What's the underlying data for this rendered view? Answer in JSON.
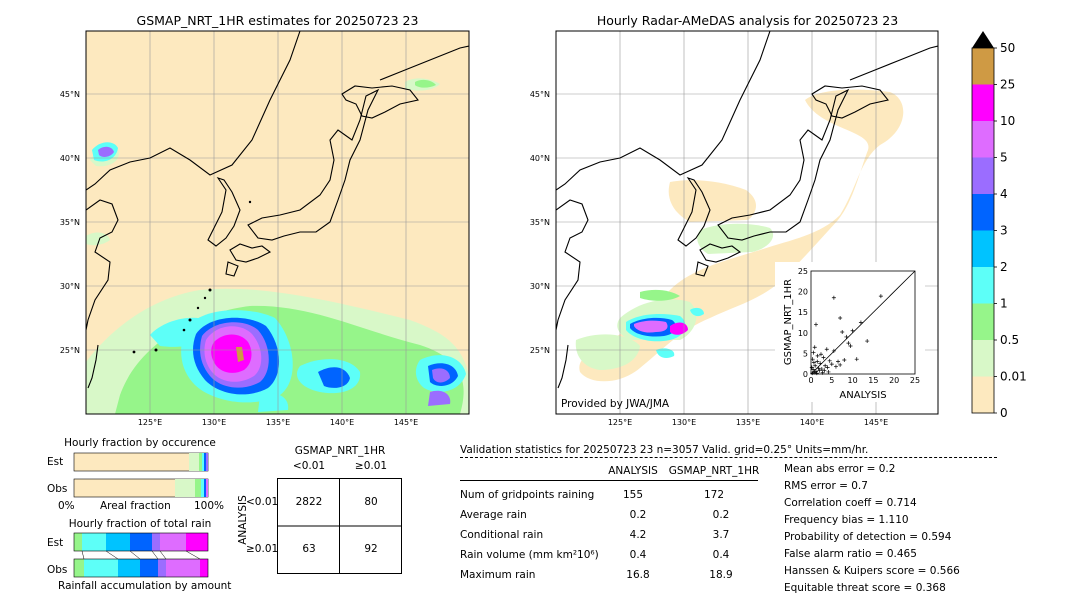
{
  "colors": {
    "land_bg": "#fde9bf",
    "levels": [
      "#fde9bf",
      "#d8f8c8",
      "#96f58a",
      "#5dfff8",
      "#00c3ff",
      "#0064ff",
      "#9b6dff",
      "#de6cff",
      "#ff00ff",
      "#cf9a44"
    ]
  },
  "left_map": {
    "title": "GSMAP_NRT_1HR estimates for 20250723 23",
    "lat_labels": [
      "45°N",
      "40°N",
      "35°N",
      "30°N",
      "25°N"
    ],
    "lon_labels": [
      "125°E",
      "130°E",
      "135°E",
      "140°E",
      "145°E"
    ]
  },
  "right_map": {
    "title": "Hourly Radar-AMeDAS analysis for 20250723 23",
    "lat_labels": [
      "45°N",
      "40°N",
      "35°N",
      "30°N",
      "25°N"
    ],
    "lon_labels": [
      "125°E",
      "130°E",
      "135°E",
      "140°E",
      "145°E"
    ],
    "credit": "Provided by JWA/JMA"
  },
  "colorbar": {
    "labels": [
      "50",
      "25",
      "10",
      "5",
      "4",
      "3",
      "2",
      "1",
      "0.5",
      "0.01",
      "0"
    ]
  },
  "fraction_occurrence": {
    "title": "Hourly fraction by occurence",
    "row_labels": [
      "Est",
      "Obs"
    ],
    "axis_left": "0%",
    "axis_mid": "Areal fraction",
    "axis_right": "100%"
  },
  "fraction_total": {
    "title": "Hourly fraction of total rain",
    "row_labels": [
      "Est",
      "Obs"
    ],
    "axis_mid": "Rainfall accumulation by amount"
  },
  "contingency": {
    "title": "GSMAP_NRT_1HR",
    "col_labels": [
      "<0.01",
      "≥0.01"
    ],
    "row_axis": "ANALYSIS",
    "row_labels": [
      "<0.01",
      "≥0.01"
    ],
    "cells": [
      "2822",
      "80",
      "63",
      "92"
    ]
  },
  "validation": {
    "header": "Validation statistics for 20250723 23  n=3057 Valid. grid=0.25° Units=mm/hr.",
    "col_analysis": "ANALYSIS",
    "col_gsmap": "GSMAP_NRT_1HR",
    "rows": [
      {
        "label": "Num of gridpoints raining",
        "analysis": "155",
        "gsmap": "172"
      },
      {
        "label": "Average rain",
        "analysis": "0.2",
        "gsmap": "0.2"
      },
      {
        "label": "Conditional rain",
        "analysis": "4.2",
        "gsmap": "3.7"
      },
      {
        "label": "Rain volume (mm km²10⁶)",
        "analysis": "0.4",
        "gsmap": "0.4"
      },
      {
        "label": "Maximum rain",
        "analysis": "16.8",
        "gsmap": "18.9"
      }
    ],
    "scores": [
      "Mean abs error =    0.2",
      "RMS error =    0.7",
      "Correlation coeff =  0.714",
      "Frequency bias =  1.110",
      "Probability of detection =  0.594",
      "False alarm ratio =  0.465",
      "Hanssen & Kuipers score =  0.566",
      "Equitable threat score =  0.368"
    ]
  },
  "chart_data": {
    "type": "scatter",
    "xlabel": "ANALYSIS",
    "ylabel": "GSMAP_NRT_1HR",
    "xlim": [
      0,
      25
    ],
    "ylim": [
      0,
      25
    ],
    "ticks": [
      "0",
      "5",
      "10",
      "15",
      "20",
      "25"
    ],
    "points": [
      [
        0.3,
        0.2
      ],
      [
        0.5,
        1.1
      ],
      [
        0.8,
        0.4
      ],
      [
        1.0,
        2.0
      ],
      [
        1.2,
        0.6
      ],
      [
        1.5,
        3.0
      ],
      [
        0.6,
        5.2
      ],
      [
        1.8,
        1.4
      ],
      [
        2.0,
        0.8
      ],
      [
        2.2,
        2.6
      ],
      [
        0.4,
        3.6
      ],
      [
        2.6,
        1.2
      ],
      [
        3.0,
        4.0
      ],
      [
        3.4,
        2.0
      ],
      [
        0.9,
        6.5
      ],
      [
        1.6,
        4.4
      ],
      [
        4.0,
        1.6
      ],
      [
        4.5,
        3.2
      ],
      [
        5.0,
        2.4
      ],
      [
        5.5,
        5.6
      ],
      [
        6.0,
        1.8
      ],
      [
        6.5,
        3.0
      ],
      [
        7.0,
        2.2
      ],
      [
        3.8,
        6.0
      ],
      [
        8.0,
        3.4
      ],
      [
        8.5,
        9.0
      ],
      [
        9.0,
        7.5
      ],
      [
        9.5,
        6.8
      ],
      [
        10.0,
        10.5
      ],
      [
        11.0,
        3.6
      ],
      [
        12.0,
        12.5
      ],
      [
        1.2,
        12.0
      ],
      [
        7.0,
        13.6
      ],
      [
        7.5,
        10.2
      ],
      [
        5.5,
        18.5
      ],
      [
        16.8,
        18.9
      ],
      [
        13.5,
        8.0
      ],
      [
        2.8,
        0.3
      ],
      [
        0.2,
        1.6
      ],
      [
        1.4,
        0.2
      ],
      [
        3.2,
        0.9
      ],
      [
        0.7,
        2.8
      ],
      [
        2.4,
        4.8
      ],
      [
        4.2,
        0.5
      ]
    ]
  }
}
